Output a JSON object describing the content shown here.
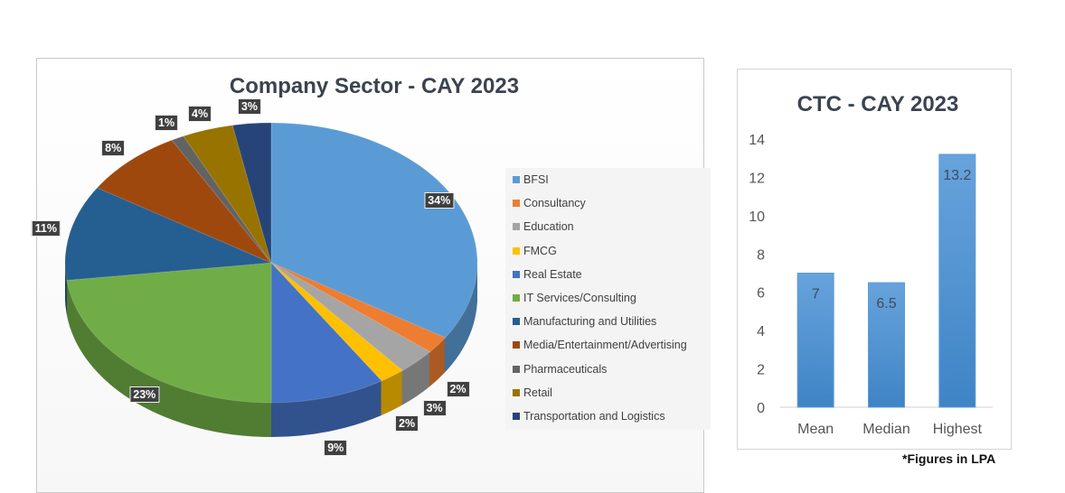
{
  "chart_data": [
    {
      "type": "pie",
      "title": "Company Sector - CAY 2023",
      "categories": [
        "BFSI",
        "Consultancy",
        "Education",
        "FMCG",
        "Real Estate",
        "IT Services/Consulting",
        "Manufacturing and Utilities",
        "Media/Entertainment/Advertising",
        "Pharmaceuticals",
        "Retail",
        "Transportation and Logistics"
      ],
      "values": [
        34,
        2,
        3,
        2,
        9,
        23,
        11,
        8,
        1,
        4,
        3
      ],
      "labels": [
        "34%",
        "2%",
        "3%",
        "2%",
        "9%",
        "23%",
        "11%",
        "8%",
        "1%",
        "4%",
        "3%"
      ],
      "colors": [
        "#5b9bd5",
        "#ed7d31",
        "#a5a5a5",
        "#ffc000",
        "#4472c4",
        "#70ad47",
        "#255e91",
        "#9e480e",
        "#636363",
        "#997300",
        "#264478"
      ],
      "style": "3d",
      "legend": "right"
    },
    {
      "type": "bar",
      "title": "CTC - CAY 2023",
      "categories": [
        "Mean",
        "Median",
        "Highest"
      ],
      "values": [
        7,
        6.5,
        13.2
      ],
      "data_labels": [
        "7",
        "6.5",
        "13.2"
      ],
      "ylim": [
        0,
        14
      ],
      "yticks": [
        "0",
        "2",
        "4",
        "6",
        "8",
        "10",
        "12",
        "14"
      ],
      "color": "#5b9bd5",
      "grid": false,
      "note": "*Figures in LPA"
    }
  ]
}
